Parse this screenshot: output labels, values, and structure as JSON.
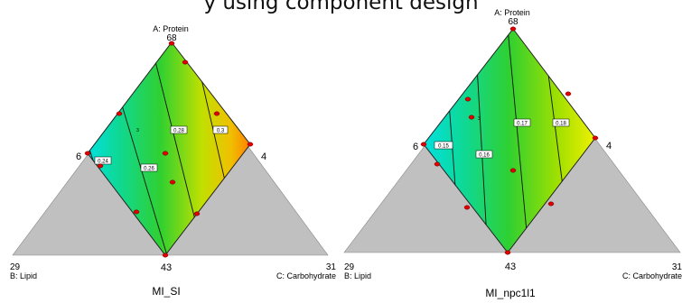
{
  "header_text": "y using component design",
  "chart_data": [
    {
      "type": "ternary-contour",
      "title": "",
      "xlabel": "MI_SI",
      "vertices": {
        "a": {
          "label": "A: Protein",
          "value": "68"
        },
        "b": {
          "label": "B: Lipid",
          "value": "29"
        },
        "c": {
          "label": "C: Carbohydrate",
          "value": "31"
        }
      },
      "constraint_labels": {
        "left": "6",
        "right": "4",
        "bottom": "43"
      },
      "contour_labels": [
        "0.24",
        "0.26",
        "0.28",
        "0.3"
      ],
      "extra_label": "3",
      "colors": {
        "low": "#00e0d0",
        "mid": "#40d020",
        "high": "#f0c000",
        "max": "#ff8000",
        "gray": "#c0c0c0"
      }
    },
    {
      "type": "ternary-contour",
      "title": "",
      "xlabel": "MI_npc1l1",
      "vertices": {
        "a": {
          "label": "A: Protein",
          "value": "68"
        },
        "b": {
          "label": "B: Lipid",
          "value": "29"
        },
        "c": {
          "label": "C: Carbohydrate",
          "value": "31"
        }
      },
      "constraint_labels": {
        "left": "6",
        "right": "4",
        "bottom": "43"
      },
      "contour_labels": [
        "0.15",
        "0.16",
        "0.17",
        "0.18"
      ],
      "extra_label": "3",
      "colors": {
        "low": "#00e0d0",
        "mid": "#40d020",
        "high": "#e0f000",
        "max": "#e8e000",
        "gray": "#c0c0c0"
      }
    }
  ]
}
